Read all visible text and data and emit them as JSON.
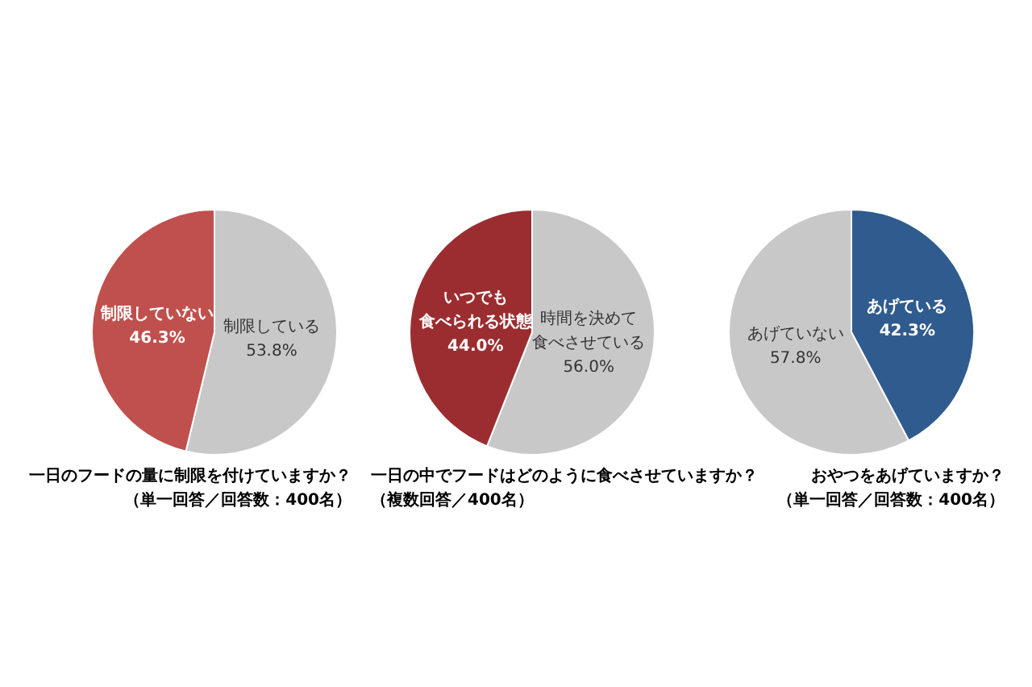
{
  "chart_data": [
    {
      "type": "pie",
      "title": "一日のフードの量に制限を付けていますか？",
      "subtitle": "（単一回答／回答数：400名）",
      "categories": [
        "制限している",
        "制限していない"
      ],
      "values": [
        53.8,
        46.3
      ],
      "value_labels": [
        "53.8%",
        "46.3%"
      ],
      "colors": [
        "#c8c8c8",
        "#c0504d"
      ],
      "legend": false
    },
    {
      "type": "pie",
      "title": "一日の中でフードはどのように食べさせていますか？",
      "subtitle": "（複数回答／400名）",
      "categories": [
        "時間を決めて食べさせている",
        "いつでも食べられる状態"
      ],
      "values": [
        56.0,
        44.0
      ],
      "value_labels": [
        "56.0%",
        "44.0%"
      ],
      "colors": [
        "#c8c8c8",
        "#9b2d30"
      ],
      "legend": false
    },
    {
      "type": "pie",
      "title": "おやつをあげていますか？",
      "subtitle": "（単一回答／回答数：400名）",
      "categories": [
        "あげている",
        "あげていない"
      ],
      "values": [
        42.3,
        57.8
      ],
      "value_labels": [
        "42.3%",
        "57.8%"
      ],
      "colors": [
        "#2f5b8f",
        "#c8c8c8"
      ],
      "legend": false
    }
  ]
}
